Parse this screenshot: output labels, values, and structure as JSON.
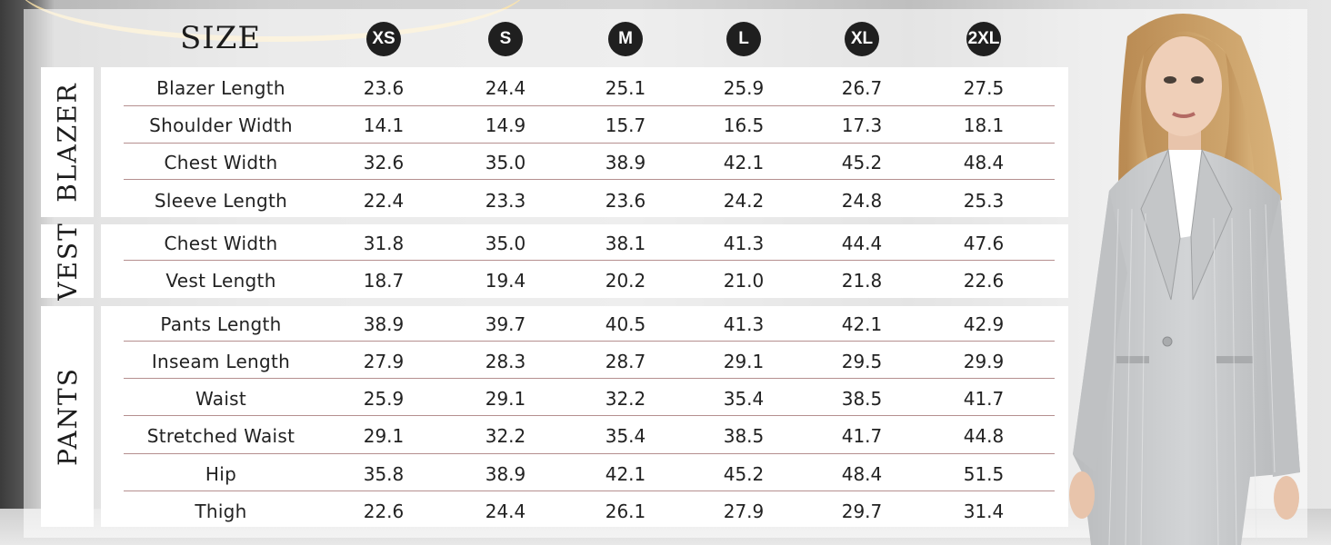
{
  "header": {
    "title": "SIZE"
  },
  "sizes": [
    "XS",
    "S",
    "M",
    "L",
    "XL",
    "2XL"
  ],
  "sections": [
    {
      "label": "BLAZER",
      "rows": [
        {
          "measure": "Blazer Length",
          "values": [
            "23.6",
            "24.4",
            "25.1",
            "25.9",
            "26.7",
            "27.5"
          ]
        },
        {
          "measure": "Shoulder Width",
          "values": [
            "14.1",
            "14.9",
            "15.7",
            "16.5",
            "17.3",
            "18.1"
          ]
        },
        {
          "measure": "Chest Width",
          "values": [
            "32.6",
            "35.0",
            "38.9",
            "42.1",
            "45.2",
            "48.4"
          ]
        },
        {
          "measure": "Sleeve Length",
          "values": [
            "22.4",
            "23.3",
            "23.6",
            "24.2",
            "24.8",
            "25.3"
          ]
        }
      ]
    },
    {
      "label": "VEST",
      "rows": [
        {
          "measure": "Chest Width",
          "values": [
            "31.8",
            "35.0",
            "38.1",
            "41.3",
            "44.4",
            "47.6"
          ]
        },
        {
          "measure": "Vest Length",
          "values": [
            "18.7",
            "19.4",
            "20.2",
            "21.0",
            "21.8",
            "22.6"
          ]
        }
      ]
    },
    {
      "label": "PANTS",
      "rows": [
        {
          "measure": "Pants Length",
          "values": [
            "38.9",
            "39.7",
            "40.5",
            "41.3",
            "42.1",
            "42.9"
          ]
        },
        {
          "measure": "Inseam Length",
          "values": [
            "27.9",
            "28.3",
            "28.7",
            "29.1",
            "29.5",
            "29.9"
          ]
        },
        {
          "measure": "Waist",
          "values": [
            "25.9",
            "29.1",
            "32.2",
            "35.4",
            "38.5",
            "41.7"
          ]
        },
        {
          "measure": "Stretched Waist",
          "values": [
            "29.1",
            "32.2",
            "35.4",
            "38.5",
            "41.7",
            "44.8"
          ]
        },
        {
          "measure": "Hip",
          "values": [
            "35.8",
            "38.9",
            "42.1",
            "45.2",
            "48.4",
            "51.5"
          ]
        },
        {
          "measure": "Thigh",
          "values": [
            "22.6",
            "24.4",
            "26.1",
            "27.9",
            "29.7",
            "31.4"
          ]
        }
      ]
    }
  ],
  "colors": {
    "badge": "#1f1f1f",
    "row_divider": "#b58f8f",
    "suit": "#c9cbcd"
  }
}
